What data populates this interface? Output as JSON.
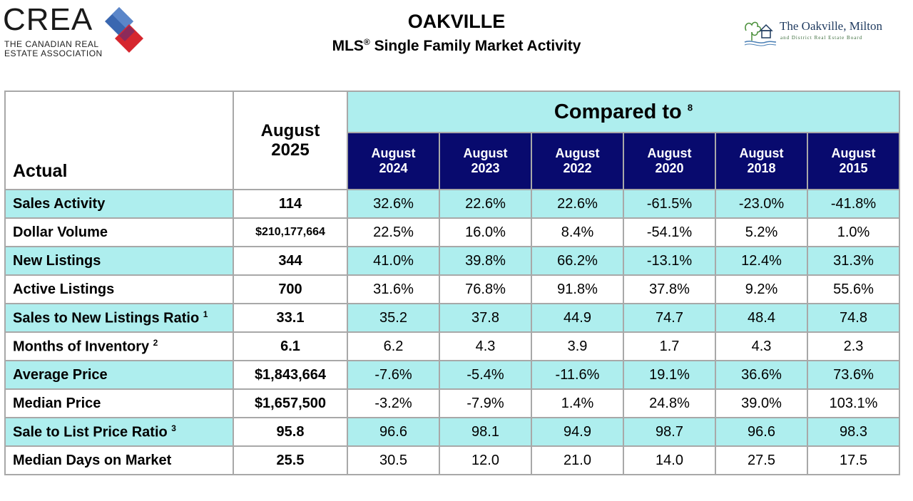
{
  "header": {
    "title": "OAKVILLE",
    "subtitle": "MLS",
    "subtitle_mark": "®",
    "subtitle_rest": " Single Family Market Activity"
  },
  "crea_logo": {
    "wordmark": "CREA",
    "line1": "THE CANADIAN REAL",
    "line2": "ESTATE ASSOCIATION",
    "colors": [
      "#3a67b0",
      "#d6262e"
    ]
  },
  "board_logo": {
    "name": "The Oakville, Milton",
    "sub": "and District Real Estate Board"
  },
  "table": {
    "actual_label": "Actual",
    "main_period": {
      "line1": "August",
      "line2": "2025"
    },
    "compared_label": "Compared to",
    "compared_note": "8",
    "periods": [
      {
        "month": "August",
        "year": "2024"
      },
      {
        "month": "August",
        "year": "2023"
      },
      {
        "month": "August",
        "year": "2022"
      },
      {
        "month": "August",
        "year": "2020"
      },
      {
        "month": "August",
        "year": "2018"
      },
      {
        "month": "August",
        "year": "2015"
      }
    ],
    "rows": [
      {
        "label": "Sales Activity",
        "note": "",
        "current": "114",
        "values": [
          "32.6%",
          "22.6%",
          "22.6%",
          "-61.5%",
          "-23.0%",
          "-41.8%"
        ]
      },
      {
        "label": "Dollar Volume",
        "note": "",
        "current": "$210,177,664",
        "values": [
          "22.5%",
          "16.0%",
          "8.4%",
          "-54.1%",
          "5.2%",
          "1.0%"
        ]
      },
      {
        "label": "New Listings",
        "note": "",
        "current": "344",
        "values": [
          "41.0%",
          "39.8%",
          "66.2%",
          "-13.1%",
          "12.4%",
          "31.3%"
        ]
      },
      {
        "label": "Active Listings",
        "note": "",
        "current": "700",
        "values": [
          "31.6%",
          "76.8%",
          "91.8%",
          "37.8%",
          "9.2%",
          "55.6%"
        ]
      },
      {
        "label": "Sales to New Listings Ratio",
        "note": "1",
        "current": "33.1",
        "values": [
          "35.2",
          "37.8",
          "44.9",
          "74.7",
          "48.4",
          "74.8"
        ]
      },
      {
        "label": "Months of Inventory",
        "note": "2",
        "current": "6.1",
        "values": [
          "6.2",
          "4.3",
          "3.9",
          "1.7",
          "4.3",
          "2.3"
        ]
      },
      {
        "label": "Average Price",
        "note": "",
        "current": "$1,843,664",
        "values": [
          "-7.6%",
          "-5.4%",
          "-11.6%",
          "19.1%",
          "36.6%",
          "73.6%"
        ]
      },
      {
        "label": "Median Price",
        "note": "",
        "current": "$1,657,500",
        "values": [
          "-3.2%",
          "-7.9%",
          "1.4%",
          "24.8%",
          "39.0%",
          "103.1%"
        ]
      },
      {
        "label": "Sale to List Price Ratio",
        "note": "3",
        "current": "95.8",
        "values": [
          "96.6",
          "98.1",
          "94.9",
          "98.7",
          "96.6",
          "98.3"
        ]
      },
      {
        "label": "Median Days on Market",
        "note": "",
        "current": "25.5",
        "values": [
          "30.5",
          "12.0",
          "21.0",
          "14.0",
          "27.5",
          "17.5"
        ]
      }
    ]
  }
}
